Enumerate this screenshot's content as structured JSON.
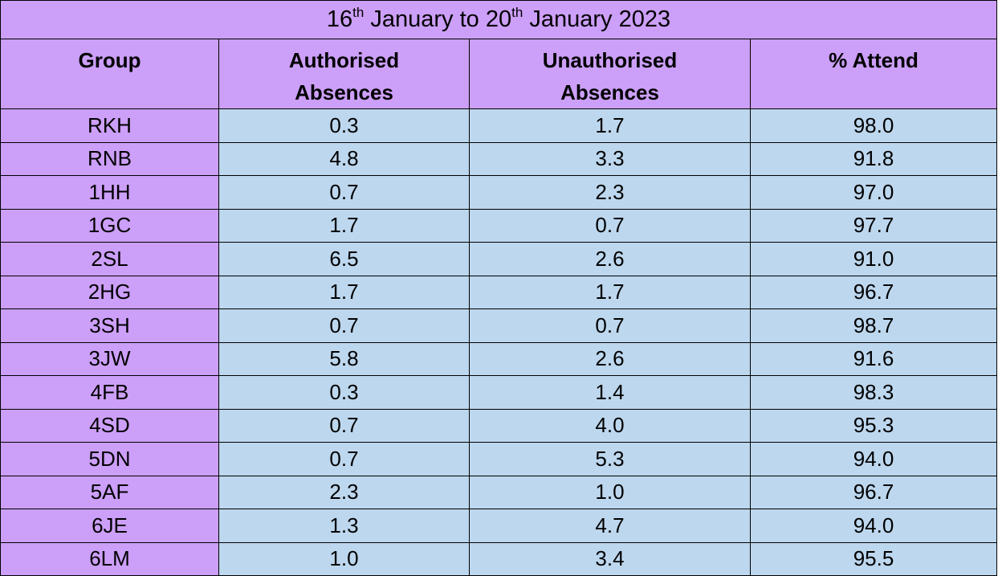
{
  "title": [
    "16",
    "th",
    " January to 20",
    "th",
    " January 2023"
  ],
  "table": {
    "header": [
      "Group",
      "Authorised Absences",
      "Unauthorised Absences",
      "% Attend"
    ],
    "rows": [
      [
        "RKH",
        "0.3",
        "1.7",
        "98.0"
      ],
      [
        "RNB",
        "4.8",
        "3.3",
        "91.8"
      ],
      [
        "1HH",
        "0.7",
        "2.3",
        "97.0"
      ],
      [
        "1GC",
        "1.7",
        "0.7",
        "97.7"
      ],
      [
        "2SL",
        "6.5",
        "2.6",
        "91.0"
      ],
      [
        "2HG",
        "1.7",
        "1.7",
        "96.7"
      ],
      [
        "3SH",
        "0.7",
        "0.7",
        "98.7"
      ],
      [
        "3JW",
        "5.8",
        "2.6",
        "91.6"
      ],
      [
        "4FB",
        "0.3",
        "1.4",
        "98.3"
      ],
      [
        "4SD",
        "0.7",
        "4.0",
        "95.3"
      ],
      [
        "5DN",
        "0.7",
        "5.3",
        "94.0"
      ],
      [
        "5AF",
        "2.3",
        "1.0",
        "96.7"
      ],
      [
        "6JE",
        "1.3",
        "4.7",
        "94.0"
      ],
      [
        "6LM",
        "1.0",
        "3.4",
        "95.5"
      ]
    ]
  }
}
